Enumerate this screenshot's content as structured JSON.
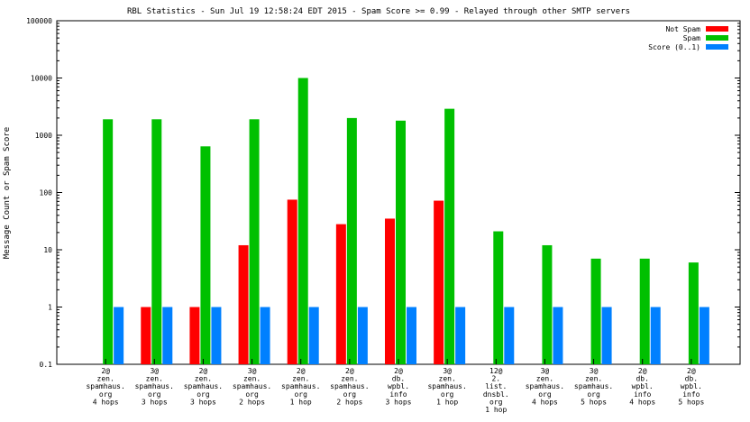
{
  "chart_data": {
    "type": "bar",
    "title": "RBL Statistics - Sun Jul 19 12:58:24 EDT 2015 - Spam Score >= 0.99 - Relayed through other SMTP servers",
    "ylabel": "Message Count or Spam Score",
    "xlabel": "",
    "scale": "log",
    "ylim": [
      0.1,
      100000
    ],
    "yticks": [
      "0.1",
      "1",
      "10",
      "100",
      "1000",
      "10000",
      "100000"
    ],
    "categories": [
      [
        "2@",
        "zen.",
        "spamhaus.",
        "org",
        "4 hops"
      ],
      [
        "3@",
        "zen.",
        "spamhaus.",
        "org",
        "3 hops"
      ],
      [
        "2@",
        "zen.",
        "spamhaus.",
        "org",
        "3 hops"
      ],
      [
        "3@",
        "zen.",
        "spamhaus.",
        "org",
        "2 hops"
      ],
      [
        "2@",
        "zen.",
        "spamhaus.",
        "org",
        "1 hop"
      ],
      [
        "2@",
        "zen.",
        "spamhaus.",
        "org",
        "2 hops"
      ],
      [
        "2@",
        "db.",
        "wpbl.",
        "info",
        "3 hops"
      ],
      [
        "3@",
        "zen.",
        "spamhaus.",
        "org",
        "1 hop"
      ],
      [
        "12@",
        "2.",
        "list.",
        "dnsbl.",
        "org",
        "1 hop"
      ],
      [
        "3@",
        "zen.",
        "spamhaus.",
        "org",
        "4 hops"
      ],
      [
        "3@",
        "zen.",
        "spamhaus.",
        "org",
        "5 hops"
      ],
      [
        "2@",
        "db.",
        "wpbl.",
        "info",
        "4 hops"
      ],
      [
        "2@",
        "db.",
        "wpbl.",
        "info",
        "5 hops"
      ]
    ],
    "series": [
      {
        "name": "Not Spam",
        "color": "#ff0000",
        "values": [
          null,
          1,
          1,
          12,
          75,
          28,
          35,
          72,
          null,
          null,
          null,
          null,
          null
        ]
      },
      {
        "name": "Spam",
        "color": "#00c000",
        "values": [
          1900,
          1900,
          640,
          1900,
          10000,
          2000,
          1800,
          2900,
          21,
          12,
          7,
          7,
          6
        ]
      },
      {
        "name": "Score (0..1)",
        "color": "#0080ff",
        "values": [
          1,
          1,
          1,
          1,
          1,
          1,
          1,
          1,
          1,
          1,
          1,
          1,
          1
        ]
      }
    ],
    "legend": "top-right",
    "grid": false
  }
}
